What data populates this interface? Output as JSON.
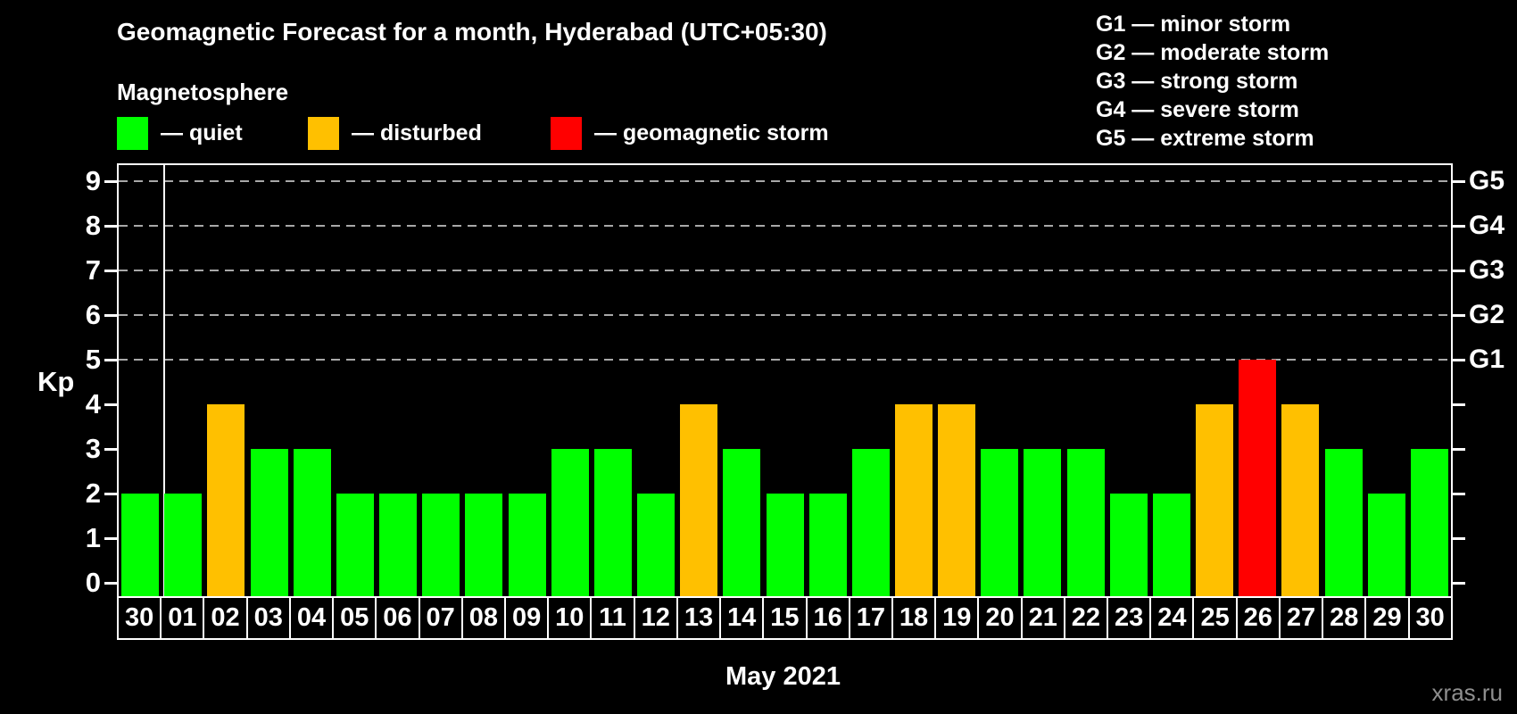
{
  "title": "Geomagnetic Forecast for a month, Hyderabad (UTC+05:30)",
  "subtitle": "Magnetosphere",
  "legend": {
    "items": [
      {
        "key": "quiet",
        "label": "— quiet",
        "color": "#00ff00",
        "x": 0
      },
      {
        "key": "disturbed",
        "label": "— disturbed",
        "color": "#ffc000",
        "x": 214
      },
      {
        "key": "storm",
        "label": "— geomagnetic storm",
        "color": "#ff0000",
        "x": 486
      }
    ]
  },
  "g_legend": {
    "items": [
      "G1 — minor storm",
      "G2 — moderate storm",
      "G3 — strong storm",
      "G4 — severe storm",
      "G5 — extreme storm"
    ]
  },
  "watermark": "xras.ru",
  "chart_data": {
    "type": "bar",
    "title": "Geomagnetic Forecast for a month, Hyderabad (UTC+05:30)",
    "xlabel": "May 2021",
    "ylabel": "Kp",
    "ylim": [
      0,
      9
    ],
    "yticks": [
      0,
      1,
      2,
      3,
      4,
      5,
      6,
      7,
      8,
      9
    ],
    "gridlines_at_kp": [
      5,
      6,
      7,
      8,
      9
    ],
    "grid_on": true,
    "legend_position": "top-left",
    "right_axis_labels": [
      {
        "label": "G1",
        "kp": 5
      },
      {
        "label": "G2",
        "kp": 6
      },
      {
        "label": "G3",
        "kp": 7
      },
      {
        "label": "G4",
        "kp": 8
      },
      {
        "label": "G5",
        "kp": 9
      }
    ],
    "categories": [
      "30",
      "01",
      "02",
      "03",
      "04",
      "05",
      "06",
      "07",
      "08",
      "09",
      "10",
      "11",
      "12",
      "13",
      "14",
      "15",
      "16",
      "17",
      "18",
      "19",
      "20",
      "21",
      "22",
      "23",
      "24",
      "25",
      "26",
      "27",
      "28",
      "29",
      "30"
    ],
    "values": [
      2,
      2,
      4,
      3,
      3,
      2,
      2,
      2,
      2,
      2,
      3,
      3,
      2,
      4,
      3,
      2,
      2,
      3,
      4,
      4,
      3,
      3,
      3,
      2,
      2,
      4,
      5,
      4,
      3,
      2,
      3
    ],
    "month_separator_after_index": 0,
    "thresholds": {
      "disturbed_min_kp": 4,
      "storm_min_kp": 5
    },
    "colors": {
      "quiet": "#00ff00",
      "disturbed": "#ffc000",
      "storm": "#ff0000",
      "grid": "#a8a8a8",
      "axis": "#ffffff",
      "watermark": "#8f8f8f"
    }
  }
}
